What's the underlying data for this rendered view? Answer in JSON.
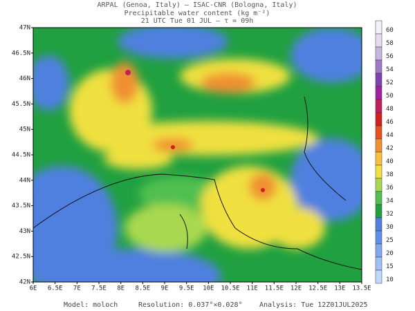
{
  "header": {
    "line1": "ARPAL (Genoa, Italy)  —  ISAC-CNR (Bologna, Italy)",
    "line2": "Precipitable water content (kg m⁻²)",
    "line3": "21 UTC Tue 01 JUL  —  τ = 09h"
  },
  "map": {
    "lat_labels": [
      "47N",
      "46.5N",
      "46N",
      "45.5N",
      "45N",
      "44.5N",
      "44N",
      "43.5N",
      "43N",
      "42.5N",
      "42N"
    ],
    "lon_labels": [
      "6E",
      "6.5E",
      "7E",
      "7.5E",
      "8E",
      "8.5E",
      "9E",
      "9.5E",
      "10E",
      "10.5E",
      "11E",
      "11.5E",
      "12E",
      "12.5E",
      "13E",
      "13.5E"
    ]
  },
  "colorbar": {
    "levels": [
      60,
      58,
      56,
      54,
      52,
      50,
      48,
      46,
      44,
      42,
      40,
      38,
      36,
      34,
      32,
      30,
      25,
      20,
      15,
      10
    ],
    "colors": [
      "#f4f0f8",
      "#e6dcf0",
      "#c8b4e0",
      "#a078c8",
      "#8040b0",
      "#a020a0",
      "#c02060",
      "#d02020",
      "#e85020",
      "#f09030",
      "#f8c040",
      "#f0e040",
      "#a8d850",
      "#50c050",
      "#20a040",
      "#5080e0",
      "#6090e8",
      "#80a8f0",
      "#a0c0f8",
      "#c0d8fc"
    ]
  },
  "footer": {
    "model": "Model: moloch",
    "resolution": "Resolution: 0.037°×0.028°",
    "analysis": "Analysis: Tue 12Z01JUL2025"
  }
}
